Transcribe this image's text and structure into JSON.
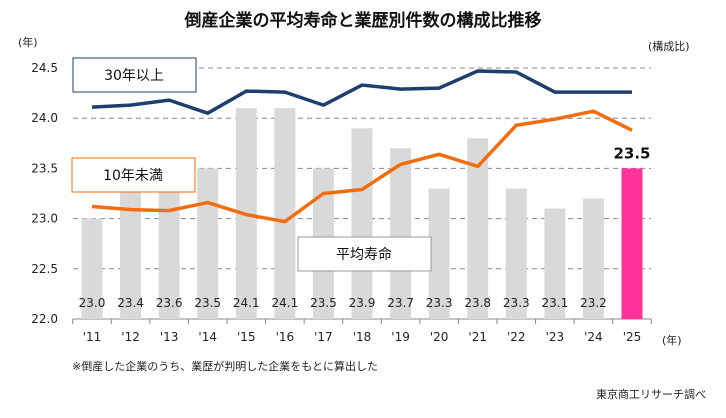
{
  "chart_data": {
    "type": "bar",
    "title": "倒産企業の平均寿命と業歴別件数の構成比推移",
    "ylabel": "(年)",
    "y2label": "(構成比)",
    "xlabel": "(年)",
    "ylim": [
      22.0,
      24.5
    ],
    "yticks": [
      "24.5",
      "24.0",
      "23.5",
      "23.0",
      "22.5",
      "22.0"
    ],
    "grid": true,
    "categories": [
      "'11",
      "'12",
      "'13",
      "'14",
      "'15",
      "'16",
      "'17",
      "'18",
      "'19",
      "'20",
      "'21",
      "'22",
      "'23",
      "'24",
      "'25"
    ],
    "bars": {
      "name": "平均寿命",
      "values": [
        23.0,
        23.4,
        23.6,
        23.5,
        24.1,
        24.1,
        23.5,
        23.9,
        23.7,
        23.3,
        23.8,
        23.3,
        23.1,
        23.2,
        23.5
      ],
      "labels": [
        "23.0",
        "23.4",
        "23.6",
        "23.5",
        "24.1",
        "24.1",
        "23.5",
        "23.9",
        "23.7",
        "23.3",
        "23.8",
        "23.3",
        "23.1",
        "23.2",
        "23.5"
      ],
      "color": "#d9d9d9",
      "highlight_color": "#ff3399"
    },
    "series": [
      {
        "name": "30年以上",
        "type": "line",
        "color": "#1f3f6e",
        "values": [
          24.11,
          24.13,
          24.18,
          24.05,
          24.27,
          24.26,
          24.13,
          24.33,
          24.29,
          24.3,
          24.47,
          24.46,
          24.26,
          24.26,
          24.26
        ]
      },
      {
        "name": "10年未満",
        "type": "line",
        "color": "#f36c0e",
        "values": [
          23.12,
          23.09,
          23.08,
          23.16,
          23.04,
          22.97,
          23.25,
          23.29,
          23.54,
          23.64,
          23.52,
          23.93,
          23.99,
          24.07,
          23.88
        ]
      }
    ]
  },
  "notes": {
    "footnote": "※倒産した企業のうち、業歴が判明した企業をもとに算出した",
    "source": "東京商工リサーチ調べ"
  }
}
